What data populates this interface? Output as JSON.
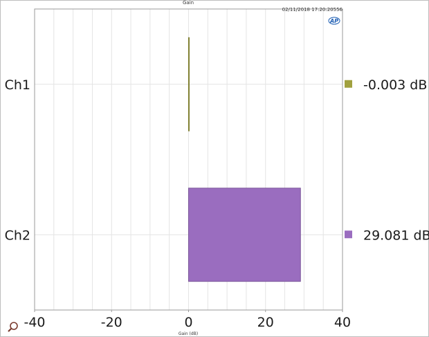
{
  "chart_data": {
    "type": "bar",
    "orientation": "horizontal",
    "title": "Gain",
    "timestamp": "02/11/2018 17:20:20556",
    "xlabel": "Gain (dB)",
    "ylabel": "",
    "xlim": [
      -40,
      40
    ],
    "x_ticks": [
      "-40",
      "-20",
      "0",
      "20",
      "40"
    ],
    "categories": [
      "Ch1",
      "Ch2"
    ],
    "values": [
      -0.003,
      29.081
    ],
    "value_labels": [
      "-0.003  dB",
      "29.081  dB"
    ],
    "colors": [
      "#a1a13f",
      "#9a6dbf"
    ],
    "grid": true,
    "logo": "AP"
  }
}
